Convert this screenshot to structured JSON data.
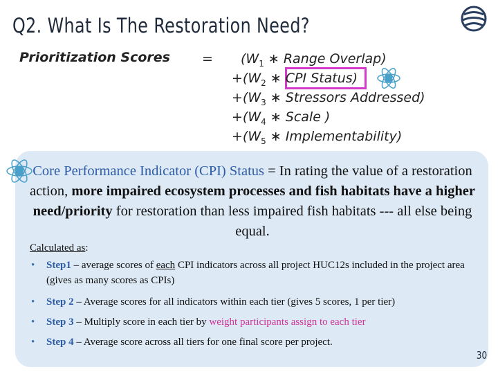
{
  "title": "Q2. What Is The Restoration Need?",
  "formula": {
    "lhs": "Prioritization Scores",
    "equals": "=",
    "rows": [
      {
        "prefix": "(W",
        "sub": "1",
        "rest": "∗ Range Overlap)"
      },
      {
        "prefix": "+(W",
        "sub": "2",
        "rest": "∗ CPI Status)"
      },
      {
        "prefix": "+(W",
        "sub": "3",
        "rest": "∗ Stressors Addressed)"
      },
      {
        "prefix": "+(W",
        "sub": "4",
        "rest": "∗ Scale )"
      },
      {
        "prefix": "+(W",
        "sub": "5",
        "rest": "∗ Implementability)"
      }
    ]
  },
  "definition": [
    {
      "text": "Core Performance Indicator (CPI) Status",
      "style": "blue"
    },
    {
      "text": " = In rating the value of a restoration action, ",
      "style": "plain"
    },
    {
      "text": "more impaired ecosystem processes and fish habitats have a higher need/priority",
      "style": "bold"
    },
    {
      "text": " for restoration than less impaired fish habitats --- all else being equal.",
      "style": "plain"
    }
  ],
  "calculated": [
    {
      "text": "Calculated as",
      "style": "underline"
    },
    {
      "text": ":",
      "style": "plain"
    }
  ],
  "steps": [
    [
      {
        "text": "Step1",
        "style": "blue-bold"
      },
      {
        "text": " – average scores of ",
        "style": "plain"
      },
      {
        "text": "each",
        "style": "underline"
      },
      {
        "text": " CPI indicators across all project HUC12s included in the project area (gives as many scores as CPIs)",
        "style": "plain"
      }
    ],
    [
      {
        "text": "Step 2",
        "style": "blue-bold"
      },
      {
        "text": " – Average scores for all indicators within each tier (gives 5 scores, 1 per tier)",
        "style": "plain"
      }
    ],
    [
      {
        "text": "Step 3",
        "style": "blue-bold"
      },
      {
        "text": " – Multiply score in each tier by ",
        "style": "plain"
      },
      {
        "text": "weight participants assign to each tier",
        "style": "pink"
      }
    ],
    [
      {
        "text": "Step 4",
        "style": "blue-bold"
      },
      {
        "text": " – Average score across all tiers for one final score per project.",
        "style": "plain"
      }
    ]
  ],
  "page_number": "30"
}
